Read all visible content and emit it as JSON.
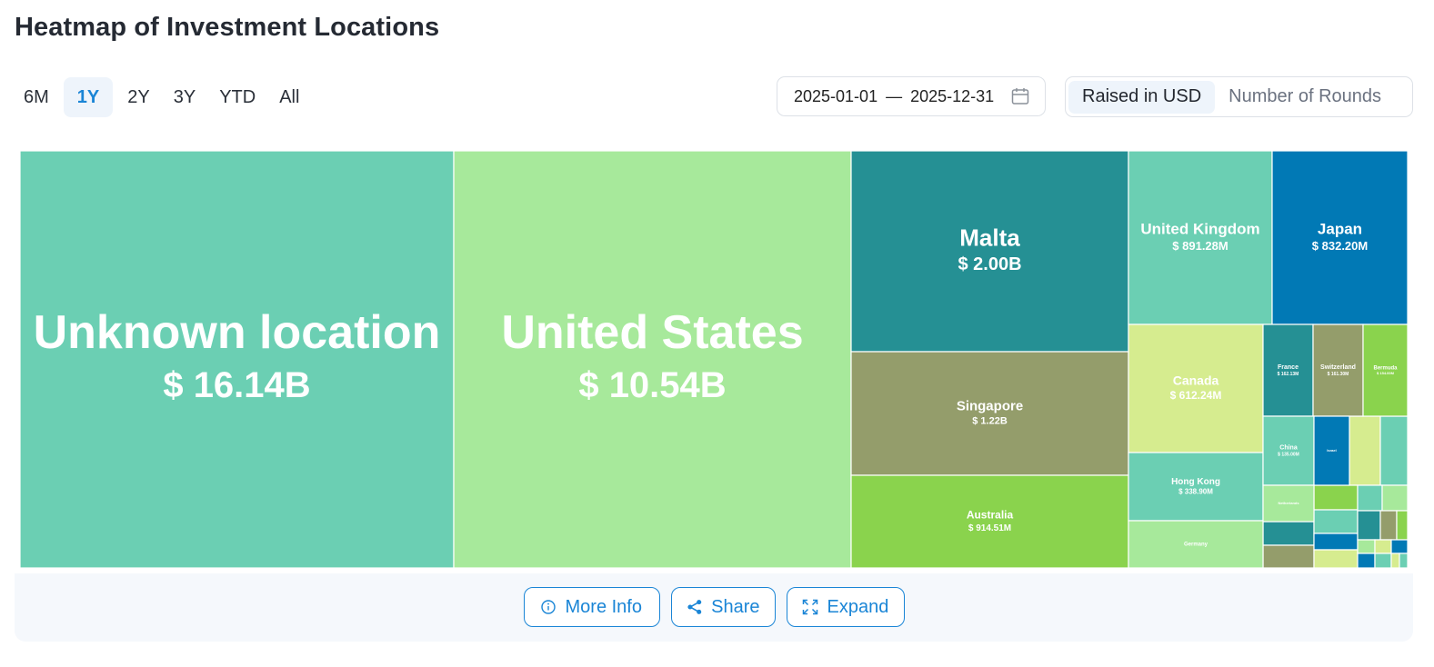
{
  "header": {
    "title": "Heatmap of Investment Locations"
  },
  "periods": [
    "6M",
    "1Y",
    "2Y",
    "3Y",
    "YTD",
    "All"
  ],
  "active_period": "1Y",
  "date_range": {
    "start": "2025-01-01",
    "separator": "—",
    "end": "2025-12-31"
  },
  "metric_toggle": {
    "options": [
      "Raised in USD",
      "Number of Rounds"
    ],
    "active": "Raised in USD"
  },
  "footer": {
    "more_info_label": "More Info",
    "share_label": "Share",
    "expand_label": "Expand"
  },
  "colors": {
    "accent": "#1a85d6",
    "teal_light": "#6bcfb3",
    "green_light": "#a7e99b",
    "teal_dark": "#259094",
    "olive": "#949d6b",
    "green": "#8ad34d",
    "blue": "#0179b5",
    "yellow_green": "#d6ec8f"
  },
  "chart_data": {
    "type": "treemap",
    "unit": "USD",
    "items": [
      {
        "name": "Unknown location",
        "label": "$ 16.14B",
        "value": 16140,
        "color": "#6bcfb3"
      },
      {
        "name": "United States",
        "label": "$ 10.54B",
        "value": 10540,
        "color": "#a7e99b"
      },
      {
        "name": "Malta",
        "label": "$ 2.00B",
        "value": 2000,
        "color": "#259094"
      },
      {
        "name": "Singapore",
        "label": "$ 1.22B",
        "value": 1220,
        "color": "#949d6b"
      },
      {
        "name": "Australia",
        "label": "$ 914.51M",
        "value": 914.51,
        "color": "#8ad34d"
      },
      {
        "name": "United Kingdom",
        "label": "$ 891.28M",
        "value": 891.28,
        "color": "#6bcfb3"
      },
      {
        "name": "Japan",
        "label": "$ 832.20M",
        "value": 832.2,
        "color": "#0179b5"
      },
      {
        "name": "Canada",
        "label": "$ 612.24M",
        "value": 612.24,
        "color": "#d6ec8f"
      },
      {
        "name": "Hong Kong",
        "label": "$ 338.90M",
        "value": 338.9,
        "color": "#6bcfb3"
      },
      {
        "name": "Germany",
        "label": "",
        "value": 240,
        "color": "#a7e99b"
      },
      {
        "name": "France",
        "label": "$ 162.13M",
        "value": 162.13,
        "color": "#259094"
      },
      {
        "name": "Switzerland",
        "label": "$ 161.30M",
        "value": 161.3,
        "color": "#949d6b"
      },
      {
        "name": "Bermuda",
        "label": "$ 154.00M",
        "value": 154,
        "color": "#8ad34d"
      },
      {
        "name": "China",
        "label": "$ 135.00M",
        "value": 135,
        "color": "#6bcfb3"
      },
      {
        "name": "Israel",
        "label": "",
        "value": 90,
        "color": "#0179b5"
      },
      {
        "name": "",
        "label": "",
        "value": 80,
        "color": "#d6ec8f"
      },
      {
        "name": "",
        "label": "",
        "value": 70,
        "color": "#6bcfb3"
      },
      {
        "name": "Netherlands",
        "label": "",
        "value": 60,
        "color": "#a7e99b"
      },
      {
        "name": "",
        "label": "",
        "value": 40,
        "color": "#259094"
      },
      {
        "name": "",
        "label": "",
        "value": 30,
        "color": "#949d6b"
      }
    ]
  }
}
